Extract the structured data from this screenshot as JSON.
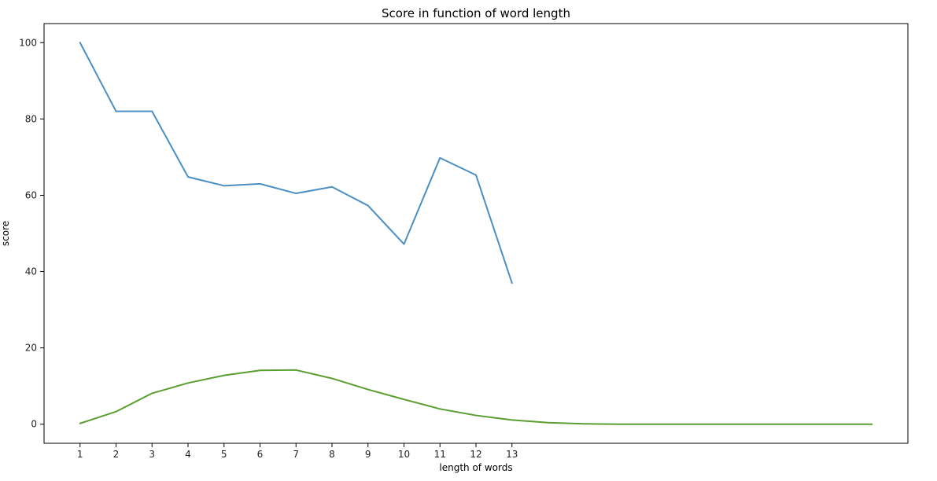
{
  "chart_data": {
    "type": "line",
    "title": "Score in function of word length",
    "xlabel": "length of words",
    "ylabel": "score",
    "xlim": [
      0,
      24
    ],
    "ylim": [
      -5,
      105
    ],
    "xticks": [
      1,
      2,
      3,
      4,
      5,
      6,
      7,
      8,
      9,
      10,
      11,
      12,
      13
    ],
    "yticks": [
      0,
      20,
      40,
      60,
      80,
      100
    ],
    "grid": false,
    "series": [
      {
        "color": "#4b8fc3",
        "x": [
          1,
          2,
          3,
          4,
          5,
          6,
          7,
          8,
          9,
          10,
          11,
          12,
          13
        ],
        "y": [
          100,
          82,
          82,
          64.8,
          62.5,
          63,
          60.5,
          62.2,
          57.3,
          47.2,
          69.8,
          65.3,
          37
        ]
      },
      {
        "color": "#5a9e2f",
        "x": [
          1,
          2,
          3,
          4,
          5,
          6,
          7,
          8,
          9,
          10,
          11,
          12,
          13,
          14,
          15,
          16,
          17,
          18,
          19,
          20,
          21,
          22,
          23
        ],
        "y": [
          0.2,
          3.3,
          8.1,
          10.8,
          12.8,
          14.1,
          14.2,
          12,
          9.1,
          6.5,
          4,
          2.3,
          1.1,
          0.4,
          0.1,
          0,
          0,
          0,
          0,
          0,
          0,
          0,
          0
        ]
      }
    ]
  }
}
